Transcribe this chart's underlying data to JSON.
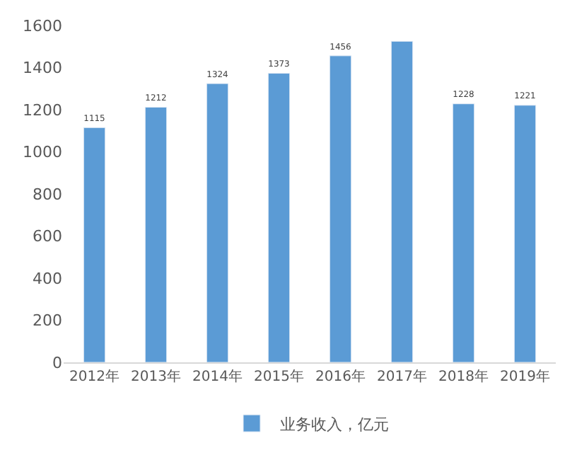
{
  "chart_data": {
    "type": "bar",
    "categories": [
      "2012年",
      "2013年",
      "2014年",
      "2015年",
      "2016年",
      "2017年",
      "2018年",
      "2019年"
    ],
    "series": [
      {
        "name": "业务收入，亿元",
        "color": "#5b9bd5",
        "values": [
          1115,
          1212,
          1324,
          1373,
          1456,
          1525,
          1228,
          1221
        ]
      }
    ],
    "value_labels": [
      "1115",
      "1212",
      "1324",
      "1373",
      "1456",
      null,
      "1228",
      "1221"
    ],
    "ylim": [
      0,
      1600
    ],
    "yticks": [
      0,
      200,
      400,
      600,
      800,
      1000,
      1200,
      1400,
      1600
    ],
    "legend": "bottom"
  }
}
